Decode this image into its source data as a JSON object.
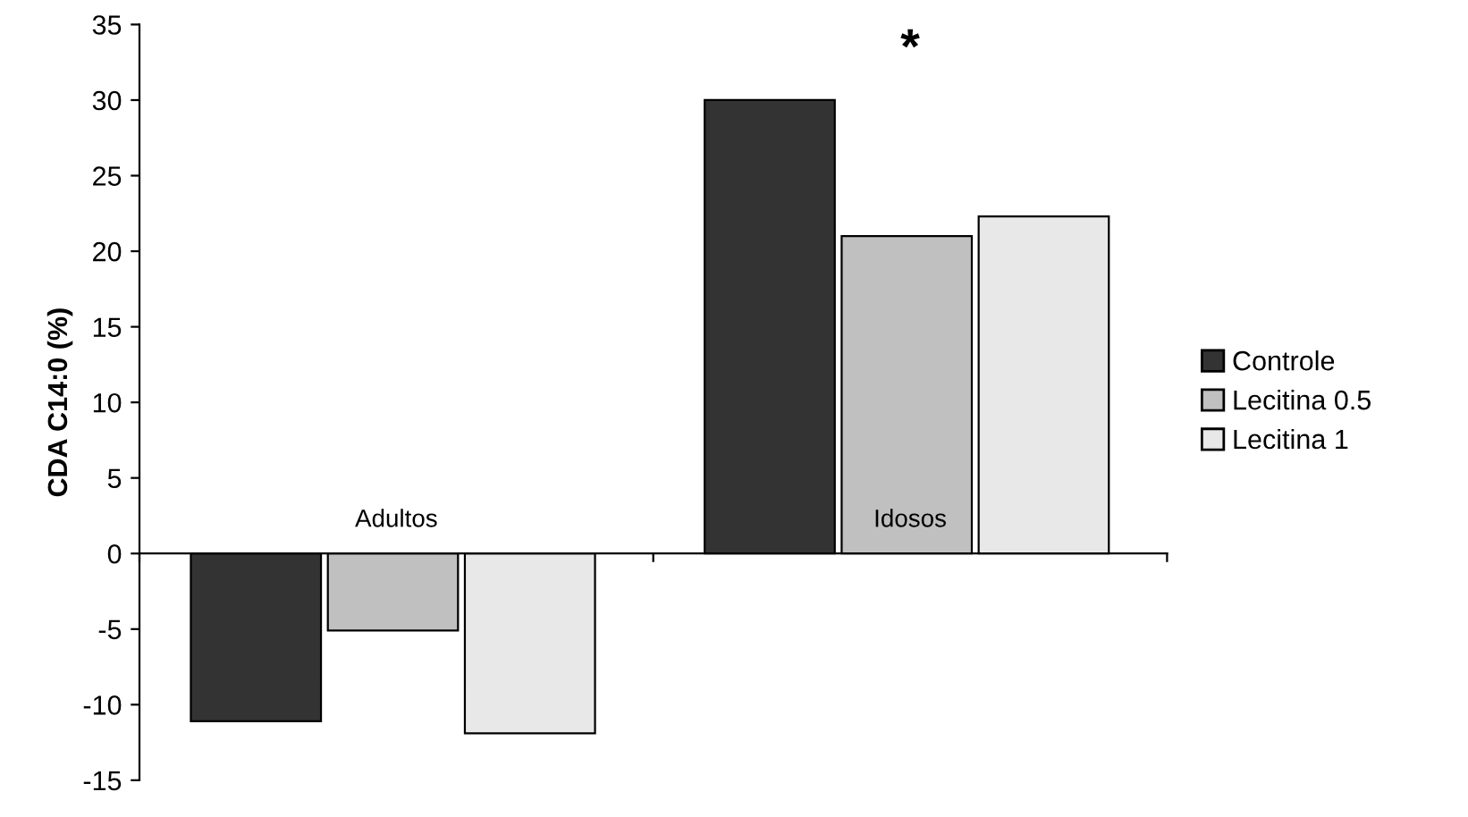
{
  "chart_data": {
    "type": "bar",
    "ylabel": "CDA C14:0 (%)",
    "categories": [
      "Adultos",
      "Idosos"
    ],
    "series": [
      {
        "name": "Controle",
        "color": "#333333",
        "values": [
          -11.1,
          30
        ]
      },
      {
        "name": "Lecitina 0.5",
        "color": "#c0c0c0",
        "values": [
          -5.1,
          21
        ]
      },
      {
        "name": "Lecitina 1",
        "color": "#e8e8e8",
        "values": [
          -11.9,
          22.3
        ]
      }
    ],
    "ylim": [
      -15,
      35
    ],
    "yticks": [
      -15,
      -10,
      -5,
      0,
      5,
      10,
      15,
      20,
      25,
      30,
      35
    ],
    "grid": false,
    "legend": "right",
    "annotations": [
      "*"
    ]
  }
}
